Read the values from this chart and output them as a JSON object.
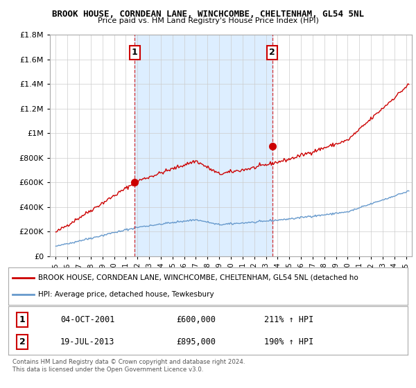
{
  "title": "BROOK HOUSE, CORNDEAN LANE, WINCHCOMBE, CHELTENHAM, GL54 5NL",
  "subtitle": "Price paid vs. HM Land Registry's House Price Index (HPI)",
  "ylim": [
    0,
    1800000
  ],
  "yticks": [
    0,
    200000,
    400000,
    600000,
    800000,
    1000000,
    1200000,
    1400000,
    1600000,
    1800000
  ],
  "xlim_start": 1994.5,
  "xlim_end": 2025.5,
  "sale1_year": 2001.75,
  "sale1_price": 600000,
  "sale1_label": "1",
  "sale1_date": "04-OCT-2001",
  "sale1_hpi": "211% ↑ HPI",
  "sale2_year": 2013.54,
  "sale2_price": 895000,
  "sale2_label": "2",
  "sale2_date": "19-JUL-2013",
  "sale2_hpi": "190% ↑ HPI",
  "legend_line1": "BROOK HOUSE, CORNDEAN LANE, WINCHCOMBE, CHELTENHAM, GL54 5NL (detached ho",
  "legend_line2": "HPI: Average price, detached house, Tewkesbury",
  "footer1": "Contains HM Land Registry data © Crown copyright and database right 2024.",
  "footer2": "This data is licensed under the Open Government Licence v3.0.",
  "red_color": "#cc0000",
  "blue_color": "#6699cc",
  "shade_color": "#ddeeff",
  "bg_color": "#ffffff",
  "grid_color": "#cccccc"
}
